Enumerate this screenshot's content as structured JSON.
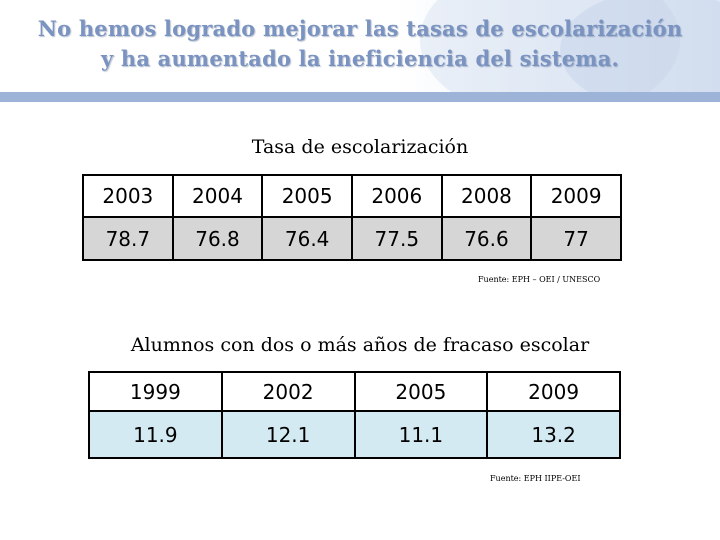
{
  "slide": {
    "title_line1": "No hemos logrado mejorar las tasas de escolarización",
    "title_line2": "y ha aumentado la ineficiencia del sistema."
  },
  "table1": {
    "caption": "Tasa de escolarización",
    "years": [
      "2003",
      "2004",
      "2005",
      "2006",
      "2008",
      "2009"
    ],
    "values": [
      "78.7",
      "76.8",
      "76.4",
      "77.5",
      "76.6",
      "77"
    ],
    "source": "Fuente: EPH – OEI / UNESCO"
  },
  "table2": {
    "caption": "Alumnos con dos o más años de fracaso escolar",
    "years": [
      "1999",
      "2002",
      "2005",
      "2009"
    ],
    "values": [
      "11.9",
      "12.1",
      "11.1",
      "13.2"
    ],
    "source": "Fuente: EPH IIPE-OEI"
  },
  "colors": {
    "title": "#7a93c0",
    "band": "#9db3d8",
    "table1_values_bg": "#d6d6d6",
    "table2_values_bg": "#d4eaf3"
  }
}
